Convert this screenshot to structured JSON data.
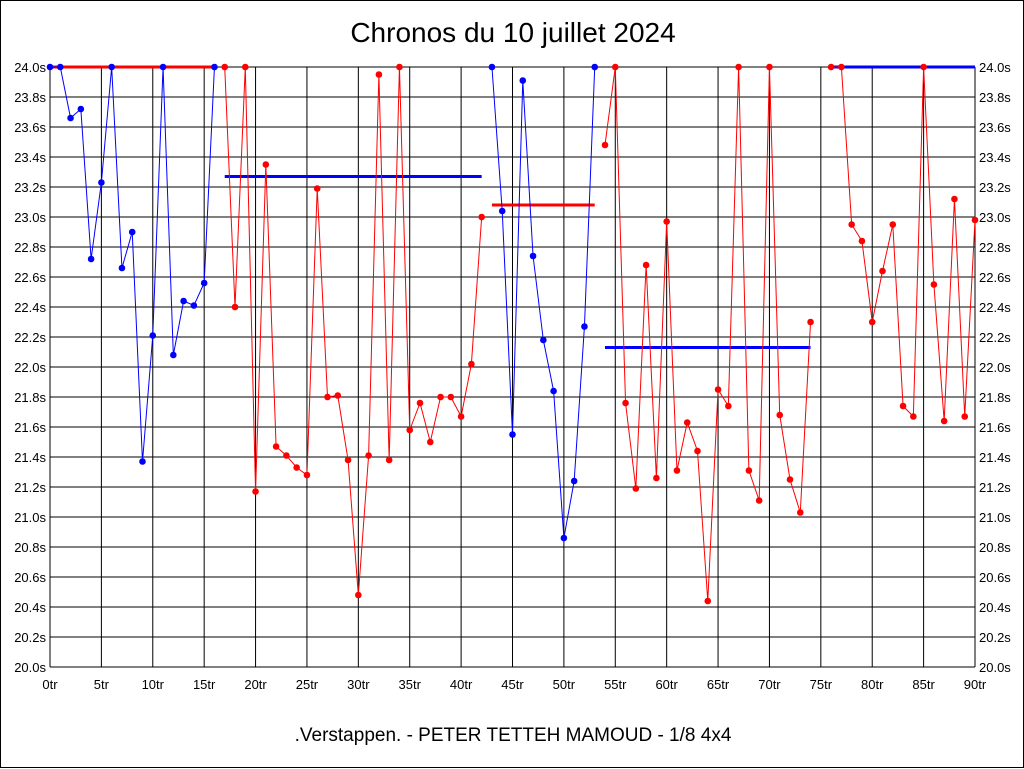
{
  "chart_data": {
    "type": "line",
    "title": "Chronos du 10 juillet 2024",
    "footer": ".Verstappen. - PETER TETTEH MAMOUD - 1/8 4x4",
    "xlabel": "",
    "ylabel": "",
    "xlim": [
      0,
      90
    ],
    "ylim": [
      20.0,
      24.0
    ],
    "grid": true,
    "x_ticks": [
      0,
      5,
      10,
      15,
      20,
      25,
      30,
      35,
      40,
      45,
      50,
      55,
      60,
      65,
      70,
      75,
      80,
      85,
      90
    ],
    "x_tick_labels": [
      "0tr",
      "5tr",
      "10tr",
      "15tr",
      "20tr",
      "25tr",
      "30tr",
      "35tr",
      "40tr",
      "45tr",
      "50tr",
      "55tr",
      "60tr",
      "65tr",
      "70tr",
      "75tr",
      "80tr",
      "85tr",
      "90tr"
    ],
    "y_ticks": [
      20.0,
      20.2,
      20.4,
      20.6,
      20.8,
      21.0,
      21.2,
      21.4,
      21.6,
      21.8,
      22.0,
      22.2,
      22.4,
      22.6,
      22.8,
      23.0,
      23.2,
      23.4,
      23.6,
      23.8,
      24.0
    ],
    "y_tick_labels": [
      "20.0s",
      "20.2s",
      "20.4s",
      "20.6s",
      "20.8s",
      "21.0s",
      "21.2s",
      "21.4s",
      "21.6s",
      "21.8s",
      "22.0s",
      "22.2s",
      "22.4s",
      "22.6s",
      "22.8s",
      "23.0s",
      "23.2s",
      "23.4s",
      "23.6s",
      "23.8s",
      "24.0s"
    ],
    "series": [
      {
        "color": "#0000ff",
        "x": [
          0,
          1,
          2,
          3,
          4,
          5,
          6,
          7,
          8,
          9,
          10,
          11,
          12,
          13,
          14,
          15,
          16
        ],
        "values": [
          24.0,
          24.0,
          23.66,
          23.72,
          22.72,
          23.23,
          24.0,
          22.66,
          22.9,
          21.37,
          22.21,
          24.0,
          22.08,
          22.44,
          22.41,
          22.56,
          24.0
        ]
      },
      {
        "color": "#ff0000",
        "x": [
          17,
          18,
          19,
          20,
          21,
          22,
          23,
          24,
          25,
          26,
          27,
          28,
          29,
          30,
          31,
          32,
          33,
          34,
          35,
          36,
          37,
          38,
          39,
          40,
          41,
          42
        ],
        "values": [
          24.0,
          22.4,
          24.0,
          21.17,
          23.35,
          21.47,
          21.41,
          21.33,
          21.28,
          23.19,
          21.8,
          21.81,
          21.38,
          20.48,
          21.41,
          23.95,
          21.38,
          24.0,
          21.58,
          21.76,
          21.5,
          21.8,
          21.8,
          21.67,
          22.02,
          23.0
        ]
      },
      {
        "color": "#0000ff",
        "x": [
          43,
          44,
          45,
          46,
          47,
          48,
          49,
          50,
          51,
          52,
          53
        ],
        "values": [
          24.0,
          23.04,
          21.55,
          23.91,
          22.74,
          22.18,
          21.84,
          20.86,
          21.24,
          22.27,
          24.0
        ]
      },
      {
        "color": "#ff0000",
        "x": [
          54,
          55,
          56,
          57,
          58,
          59,
          60,
          61,
          62,
          63,
          64,
          65,
          66,
          67,
          68,
          69,
          70,
          71,
          72,
          73,
          74
        ],
        "values": [
          23.48,
          24.0,
          21.76,
          21.19,
          22.68,
          21.26,
          22.97,
          21.31,
          21.63,
          21.44,
          20.44,
          21.85,
          21.74,
          24.0,
          21.31,
          21.11,
          24.0,
          21.68,
          21.25,
          21.03,
          22.3
        ]
      },
      {
        "color": "#ff0000",
        "x": [
          76,
          77,
          78,
          79,
          80,
          81,
          82,
          83,
          84,
          85,
          86,
          87,
          88,
          89,
          90
        ],
        "values": [
          24.0,
          24.0,
          22.95,
          22.84,
          22.3,
          22.64,
          22.95,
          21.74,
          21.67,
          24.0,
          22.55,
          21.64,
          23.12,
          21.67,
          22.98
        ]
      }
    ],
    "averages": [
      {
        "color": "#ff0000",
        "x_start": 0,
        "x_end": 16,
        "value": 24.0
      },
      {
        "color": "#0000ff",
        "x_start": 17,
        "x_end": 42,
        "value": 23.27
      },
      {
        "color": "#ff0000",
        "x_start": 43,
        "x_end": 53,
        "value": 23.08
      },
      {
        "color": "#0000ff",
        "x_start": 54,
        "x_end": 74,
        "value": 22.13
      },
      {
        "color": "#0000ff",
        "x_start": 76,
        "x_end": 90,
        "value": 24.0
      }
    ]
  }
}
